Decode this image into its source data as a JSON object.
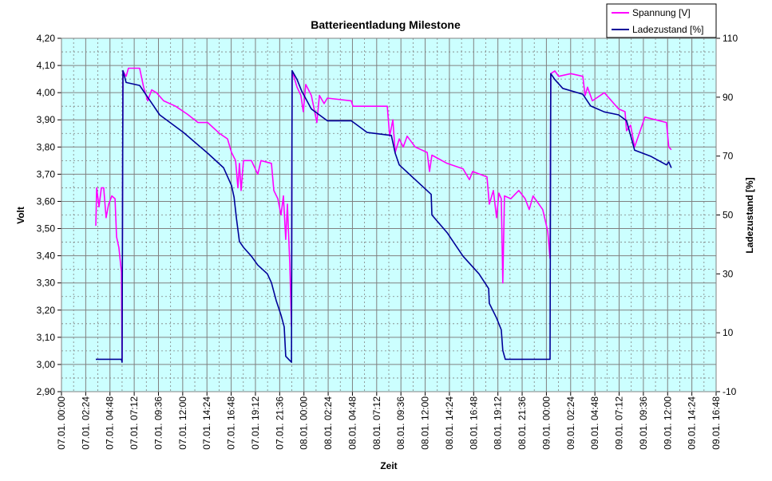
{
  "chart_data": {
    "type": "line",
    "title": "Batterieentladung Milestone",
    "xlabel": "Zeit",
    "ylabel": "Volt",
    "y2label": "Ladezustand [%]",
    "grid": true,
    "legend": "top-right",
    "plot_background": "#ccffff",
    "xlim": [
      "07.01. 00:00",
      "09.01. 16:48"
    ],
    "xticks": [
      "07.01. 00:00",
      "07.01. 02:24",
      "07.01. 04:48",
      "07.01. 07:12",
      "07.01. 09:36",
      "07.01. 12:00",
      "07.01. 14:24",
      "07.01. 16:48",
      "07.01. 19:12",
      "07.01. 21:36",
      "08.01. 00:00",
      "08.01. 02:24",
      "08.01. 04:48",
      "08.01. 07:12",
      "08.01. 09:36",
      "08.01. 12:00",
      "08.01. 14:24",
      "08.01. 16:48",
      "08.01. 19:12",
      "08.01. 21:36",
      "09.01. 00:00",
      "09.01. 02:24",
      "09.01. 04:48",
      "09.01. 07:12",
      "09.01. 09:36",
      "09.01. 12:00",
      "09.01. 14:24",
      "09.01. 16:48"
    ],
    "ylim": [
      2.9,
      4.2
    ],
    "yticks": [
      {
        "value": 2.9,
        "label": "2,90"
      },
      {
        "value": 3.0,
        "label": "3,00"
      },
      {
        "value": 3.1,
        "label": "3,10"
      },
      {
        "value": 3.2,
        "label": "3,20"
      },
      {
        "value": 3.3,
        "label": "3,30"
      },
      {
        "value": 3.4,
        "label": "3,40"
      },
      {
        "value": 3.5,
        "label": "3,50"
      },
      {
        "value": 3.6,
        "label": "3,60"
      },
      {
        "value": 3.7,
        "label": "3,70"
      },
      {
        "value": 3.8,
        "label": "3,80"
      },
      {
        "value": 3.9,
        "label": "3,90"
      },
      {
        "value": 4.0,
        "label": "4,00"
      },
      {
        "value": 4.1,
        "label": "4,10"
      },
      {
        "value": 4.2,
        "label": "4,20"
      }
    ],
    "y2lim": [
      -10,
      110
    ],
    "y2ticks": [
      -10,
      10,
      30,
      50,
      70,
      90,
      110
    ],
    "series": [
      {
        "name": "Spannung [V]",
        "color": "#ff00ff",
        "x": [
          "07.01. 03:24",
          "07.01. 03:29",
          "07.01. 03:43",
          "07.01. 03:57",
          "07.01. 04:11",
          "07.01. 04:25",
          "07.01. 04:40",
          "07.01. 04:59",
          "07.01. 05:18",
          "07.01. 05:27",
          "07.01. 05:41",
          "07.01. 05:56",
          "07.01. 06:00",
          "07.01. 06:05",
          "07.01. 06:24",
          "07.01. 06:38",
          "07.01. 07:44",
          "07.01. 08:08",
          "07.01. 08:32",
          "07.01. 08:56",
          "07.01. 09:24",
          "07.01. 10:07",
          "07.01. 11:18",
          "07.01. 12:29",
          "07.01. 13:31",
          "07.01. 14:28",
          "07.01. 15:39",
          "07.01. 16:26",
          "07.01. 16:50",
          "07.01. 17:14",
          "07.01. 17:28",
          "07.01. 17:37",
          "07.01. 17:47",
          "07.01. 18:01",
          "07.01. 18:48",
          "07.01. 19:26",
          "07.01. 19:45",
          "07.01. 20:47",
          "07.01. 21:01",
          "07.01. 21:25",
          "07.01. 21:44",
          "07.01. 21:58",
          "07.01. 22:12",
          "07.01. 22:22",
          "07.01. 22:36",
          "07.01. 22:46",
          "07.01. 22:50",
          "07.01. 23:19",
          "07.01. 23:42",
          "07.01. 23:56",
          "08.01. 00:11",
          "08.01. 00:44",
          "08.01. 01:17",
          "08.01. 01:32",
          "08.01. 02:00",
          "08.01. 02:19",
          "08.01. 04:41",
          "08.01. 04:51",
          "08.01. 08:15",
          "08.01. 08:29",
          "08.01. 08:48",
          "08.01. 09:02",
          "08.01. 09:26",
          "08.01. 09:50",
          "08.01. 10:13",
          "08.01. 11:01",
          "08.01. 12:12",
          "08.01. 12:26",
          "08.01. 12:40",
          "08.01. 14:10",
          "08.01. 15:45",
          "08.01. 16:23",
          "08.01. 16:42",
          "08.01. 18:07",
          "08.01. 18:21",
          "08.01. 18:45",
          "08.01. 19:04",
          "08.01. 19:18",
          "08.01. 19:32",
          "08.01. 19:41",
          "08.01. 19:51",
          "08.01. 20:29",
          "08.01. 21:16",
          "08.01. 21:54",
          "08.01. 22:18",
          "08.01. 22:41",
          "08.01. 23:38",
          "09.01. 00:08",
          "09.01. 00:22",
          "09.01. 00:26",
          "09.01. 00:50",
          "09.01. 01:13",
          "09.01. 02:25",
          "09.01. 03:36",
          "09.01. 03:50",
          "09.01. 04:04",
          "09.01. 04:33",
          "09.01. 05:44",
          "09.01. 07:09",
          "09.01. 07:47",
          "09.01. 07:56",
          "09.01. 08:20",
          "09.01. 08:44",
          "09.01. 09:45",
          "09.01. 11:53",
          "09.01. 12:07",
          "09.01. 12:22"
        ],
        "values": [
          3.51,
          3.65,
          3.58,
          3.65,
          3.65,
          3.54,
          3.59,
          3.62,
          3.61,
          3.47,
          3.43,
          3.34,
          3.01,
          4.08,
          4.06,
          4.09,
          4.09,
          4.02,
          3.97,
          4.01,
          4.0,
          3.97,
          3.95,
          3.92,
          3.89,
          3.89,
          3.85,
          3.83,
          3.78,
          3.75,
          3.65,
          3.74,
          3.64,
          3.75,
          3.75,
          3.7,
          3.75,
          3.74,
          3.64,
          3.61,
          3.55,
          3.62,
          3.46,
          3.59,
          3.37,
          3.14,
          4.08,
          4.02,
          3.99,
          3.93,
          4.03,
          3.99,
          3.89,
          3.99,
          3.96,
          3.98,
          3.97,
          3.95,
          3.95,
          3.84,
          3.9,
          3.78,
          3.83,
          3.8,
          3.84,
          3.8,
          3.78,
          3.71,
          3.77,
          3.74,
          3.72,
          3.68,
          3.71,
          3.69,
          3.59,
          3.64,
          3.54,
          3.63,
          3.61,
          3.3,
          3.62,
          3.61,
          3.64,
          3.61,
          3.57,
          3.62,
          3.57,
          3.49,
          3.39,
          4.07,
          4.08,
          4.06,
          4.07,
          4.06,
          3.99,
          4.02,
          3.97,
          4.0,
          3.94,
          3.93,
          3.86,
          3.88,
          3.8,
          3.91,
          3.89,
          3.8,
          3.79
        ]
      },
      {
        "name": "Ladezustand [%]",
        "color": "#000099",
        "axis": "y2",
        "x": [
          "07.01. 03:24",
          "07.01. 05:56",
          "07.01. 06:00",
          "07.01. 06:05",
          "07.01. 06:24",
          "07.01. 07:44",
          "07.01. 08:08",
          "07.01. 08:56",
          "07.01. 09:43",
          "07.01. 12:05",
          "07.01. 14:28",
          "07.01. 16:03",
          "07.01. 16:50",
          "07.01. 17:05",
          "07.01. 17:19",
          "07.01. 17:37",
          "07.01. 18:01",
          "07.01. 18:48",
          "07.01. 19:26",
          "07.01. 20:23",
          "07.01. 20:47",
          "07.01. 21:15",
          "07.01. 21:44",
          "07.01. 22:03",
          "07.01. 22:12",
          "07.01. 22:46",
          "07.01. 22:50",
          "07.01. 23:19",
          "07.01. 23:47",
          "08.01. 00:44",
          "08.01. 02:19",
          "08.01. 04:41",
          "08.01. 06:16",
          "08.01. 08:39",
          "08.01. 09:02",
          "08.01. 09:26",
          "08.01. 11:01",
          "08.01. 12:36",
          "08.01. 12:40",
          "08.01. 14:10",
          "08.01. 15:45",
          "08.01. 17:20",
          "08.01. 18:17",
          "08.01. 18:21",
          "08.01. 19:04",
          "08.01. 19:32",
          "08.01. 19:41",
          "08.01. 19:56",
          "09.01. 00:22",
          "09.01. 00:26",
          "09.01. 00:50",
          "09.01. 01:37",
          "09.01. 03:36",
          "09.01. 04:23",
          "09.01. 05:44",
          "09.01. 07:09",
          "09.01. 07:56",
          "09.01. 08:20",
          "09.01. 08:44",
          "09.01. 10:18",
          "09.01. 11:53",
          "09.01. 12:07",
          "09.01. 12:22"
        ],
        "values": [
          1,
          1,
          0,
          99,
          95,
          94,
          92,
          88,
          84,
          78,
          71,
          66,
          60,
          56,
          49,
          41,
          39,
          36,
          33,
          30,
          27,
          21,
          16,
          12,
          2,
          0,
          99,
          96,
          92,
          86,
          82,
          82,
          78,
          77,
          71,
          67,
          62,
          57,
          50,
          44,
          36,
          30,
          25,
          20,
          15,
          11,
          4,
          1,
          1,
          98,
          96,
          93,
          91,
          87,
          85,
          84,
          82,
          77,
          72,
          70,
          67,
          68,
          66
        ]
      }
    ]
  }
}
